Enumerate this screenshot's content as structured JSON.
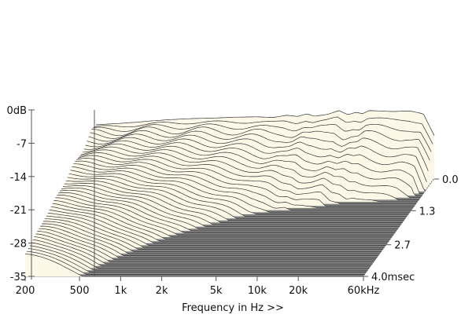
{
  "chart_data": {
    "type": "waterfall-3d",
    "title": "",
    "xlabel": "Frequency in Hz >>",
    "ylabel": "",
    "zlabel": "",
    "x_scale": "log",
    "x_ticks": [
      {
        "value": 200,
        "label": "200"
      },
      {
        "value": 500,
        "label": "500"
      },
      {
        "value": 1000,
        "label": "1k"
      },
      {
        "value": 2000,
        "label": "2k"
      },
      {
        "value": 5000,
        "label": "5k"
      },
      {
        "value": 10000,
        "label": "10k"
      },
      {
        "value": 20000,
        "label": "20k"
      },
      {
        "value": 60000,
        "label": "60kHz"
      }
    ],
    "y_ticks": [
      {
        "value": 0,
        "label": "0dB"
      },
      {
        "value": -7,
        "label": "-7"
      },
      {
        "value": -14,
        "label": "-14"
      },
      {
        "value": -21,
        "label": "-21"
      },
      {
        "value": -28,
        "label": "-28"
      },
      {
        "value": -35,
        "label": "-35"
      }
    ],
    "time_ticks": [
      {
        "value": 0.0,
        "label": "0.0"
      },
      {
        "value": 1.3,
        "label": "1.3"
      },
      {
        "value": 2.7,
        "label": "2.7"
      },
      {
        "value": 4.0,
        "label": "4.0msec"
      }
    ],
    "xlim": [
      200,
      60000
    ],
    "ylim": [
      -35,
      0
    ],
    "tlim": [
      0,
      4.0
    ],
    "slice_count": 48,
    "initial_response_db": [
      [
        200,
        -7.5
      ],
      [
        300,
        -6.8
      ],
      [
        400,
        -6.2
      ],
      [
        500,
        -5.6
      ],
      [
        700,
        -4.9
      ],
      [
        1000,
        -4.4
      ],
      [
        1500,
        -4.1
      ],
      [
        2000,
        -3.7
      ],
      [
        3000,
        -3.5
      ],
      [
        4000,
        -3.8
      ],
      [
        5000,
        -2.7
      ],
      [
        6000,
        -3.3
      ],
      [
        7000,
        -2.0
      ],
      [
        8000,
        -3.2
      ],
      [
        10000,
        -2.2
      ],
      [
        12000,
        -0.3
      ],
      [
        14000,
        -2.4
      ],
      [
        16000,
        -1.2
      ],
      [
        18000,
        -1.9
      ],
      [
        20000,
        -0.3
      ],
      [
        25000,
        -0.6
      ],
      [
        30000,
        -0.8
      ],
      [
        40000,
        -0.5
      ],
      [
        50000,
        -2.0
      ],
      [
        60000,
        -13.0
      ]
    ],
    "colors": {
      "surface": "#fbf8e8",
      "ridge_line": "#333333",
      "floor": "#8e8e8e",
      "floor_line": "#6e6e6e",
      "back_wall": "#ffffff"
    }
  }
}
